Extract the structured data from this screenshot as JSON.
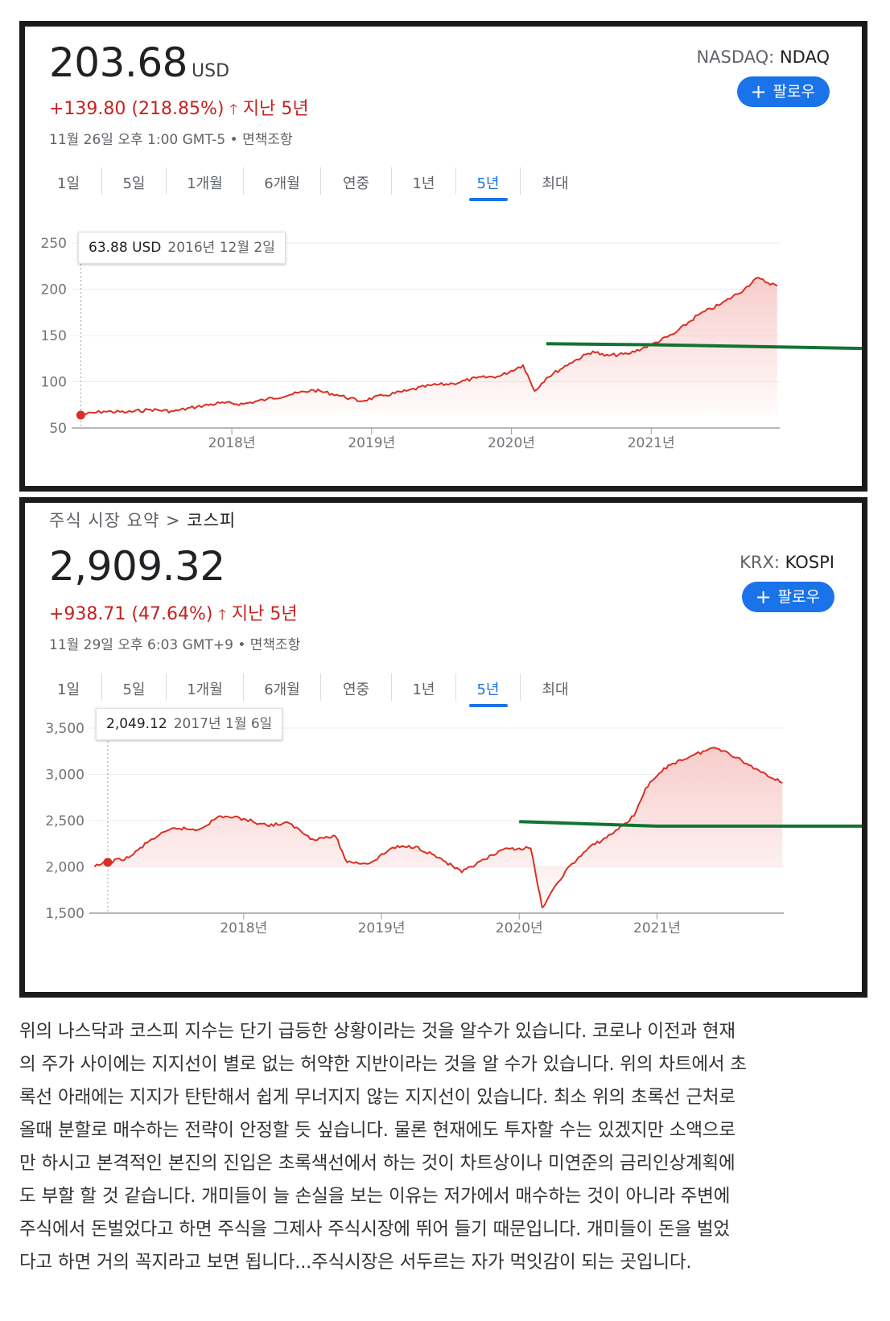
{
  "panel1": {
    "price": "203.68",
    "currency": "USD",
    "change": "+139.80 (218.85%)",
    "arrow": "🡑",
    "period": "지난 5년",
    "timestamp": "11월 26일 오후 1:00 GMT-5",
    "disclaimer": "면책조항",
    "exchange": "NASDAQ:",
    "ticker": "NDAQ",
    "follow_label": "팔로우",
    "tabs": [
      "1일",
      "5일",
      "1개월",
      "6개월",
      "연중",
      "1년",
      "5년",
      "최대"
    ],
    "active_tab": "5년",
    "tooltip_value": "63.88 USD",
    "tooltip_date": "2016년 12월 2일"
  },
  "panel2": {
    "breadcrumb_parent": "주식 시장 요약",
    "breadcrumb_sep": ">",
    "breadcrumb_current": "코스피",
    "price": "2,909.32",
    "change": "+938.71 (47.64%)",
    "arrow": "🡑",
    "period": "지난 5년",
    "timestamp": "11월 29일 오후 6:03 GMT+9",
    "disclaimer": "면책조항",
    "exchange": "KRX:",
    "ticker": "KOSPI",
    "follow_label": "팔로우",
    "tabs": [
      "1일",
      "5일",
      "1개월",
      "6개월",
      "연중",
      "1년",
      "5년",
      "최대"
    ],
    "active_tab": "5년",
    "tooltip_value": "2,049.12",
    "tooltip_date": "2017년 1월 6일"
  },
  "chart_data": [
    {
      "type": "line",
      "title": "",
      "ylim": [
        50,
        250
      ],
      "y_ticks": [
        "250",
        "200",
        "150",
        "100",
        "50"
      ],
      "x_tick_labels": [
        "2018년",
        "2019년",
        "2020년",
        "2021년"
      ],
      "grid": true,
      "colors": {
        "line": "#d93025",
        "fill": "#f6c7c5",
        "support": "#137333"
      },
      "series": [
        {
          "x": [
            "2016-12-02",
            "2017-02",
            "2017-04",
            "2017-06",
            "2017-08",
            "2017-10",
            "2017-12",
            "2018-02",
            "2018-04",
            "2018-06",
            "2018-08",
            "2018-10",
            "2018-12",
            "2019-02",
            "2019-04",
            "2019-06",
            "2019-08",
            "2019-10",
            "2019-12",
            "2020-02",
            "2020-03",
            "2020-04",
            "2020-06",
            "2020-08",
            "2020-09",
            "2020-11",
            "2021-01",
            "2021-03",
            "2021-05",
            "2021-07",
            "2021-09",
            "2021-10",
            "2021-11-26"
          ],
          "values": [
            64,
            68,
            67,
            70,
            68,
            73,
            77,
            76,
            81,
            86,
            91,
            86,
            79,
            85,
            90,
            96,
            98,
            104,
            106,
            118,
            90,
            104,
            120,
            133,
            128,
            130,
            140,
            152,
            172,
            184,
            200,
            212,
            203.68
          ]
        }
      ],
      "support_line": {
        "x": [
          "2020-04",
          "2021-01",
          "2021-11-26"
        ],
        "values": [
          141,
          140,
          136
        ]
      },
      "highlight": {
        "x": "2016-12-02",
        "value": 63.88
      }
    },
    {
      "type": "line",
      "title": "",
      "ylim": [
        1500,
        3500
      ],
      "y_ticks": [
        "3,500",
        "3,000",
        "2,500",
        "2,000",
        "1,500"
      ],
      "x_tick_labels": [
        "2018년",
        "2019년",
        "2020년",
        "2021년"
      ],
      "grid": true,
      "colors": {
        "line": "#d93025",
        "fill": "#f6c7c5",
        "support": "#137333"
      },
      "series": [
        {
          "x": [
            "2016-12",
            "2017-01-06",
            "2017-03",
            "2017-05",
            "2017-07",
            "2017-09",
            "2017-11",
            "2018-01",
            "2018-03",
            "2018-05",
            "2018-07",
            "2018-09",
            "2018-10",
            "2018-12",
            "2019-02",
            "2019-04",
            "2019-06",
            "2019-08",
            "2019-10",
            "2019-12",
            "2020-02",
            "2020-03",
            "2020-05",
            "2020-07",
            "2020-09",
            "2020-11",
            "2020-12",
            "2021-02",
            "2021-04",
            "2021-06",
            "2021-07",
            "2021-09",
            "2021-11-29"
          ],
          "values": [
            2000,
            2049,
            2100,
            2300,
            2420,
            2400,
            2550,
            2520,
            2450,
            2470,
            2300,
            2330,
            2050,
            2040,
            2210,
            2220,
            2100,
            1940,
            2080,
            2200,
            2200,
            1560,
            1950,
            2200,
            2350,
            2550,
            2850,
            3100,
            3200,
            3290,
            3250,
            3100,
            2909
          ]
        }
      ],
      "support_line": {
        "x": [
          "2020-01",
          "2021-01",
          "2021-11-29"
        ],
        "values": [
          2490,
          2440,
          2440
        ]
      },
      "highlight": {
        "x": "2017-01-06",
        "value": 2049.12
      }
    }
  ],
  "article": {
    "lines": [
      "위의 나스닥과 코스피 지수는 단기 급등한 상황이라는 것을 알수가 있습니다. 코로나 이전과 현재",
      "의 주가 사이에는 지지선이 별로 없는 허약한 지반이라는 것을 알 수가 있습니다. 위의 차트에서 초",
      "록선 아래에는 지지가 탄탄해서 쉽게 무너지지 않는 지지선이 있습니다. 최소 위의 초록선 근처로",
      "올때 분할로 매수하는 전략이 안정할 듯 싶습니다. 물론 현재에도 투자할 수는 있겠지만 소액으로",
      "만 하시고 본격적인 본진의 진입은 초록색선에서 하는 것이 차트상이나 미연준의 금리인상계획에",
      "도 부할 할 것 같습니다. 개미들이 늘 손실을 보는 이유는 저가에서 매수하는 것이 아니라 주변에",
      "주식에서 돈벌었다고 하면 주식을 그제사 주식시장에 뛰어 들기  때문입니다. 개미들이 돈을 벌었",
      "다고 하면 거의 꼭지라고 보면 됩니다...주식시장은 서두르는 자가 먹잇감이 되는 곳입니다."
    ]
  }
}
